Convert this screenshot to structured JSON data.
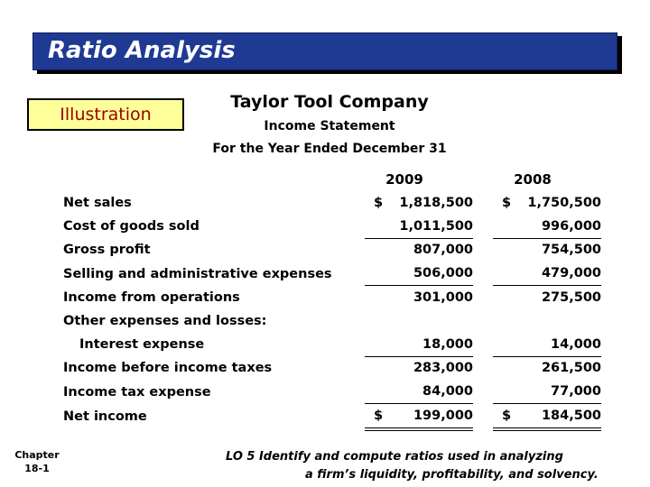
{
  "slide_title": "Ratio Analysis",
  "illustration_label": "Illustration",
  "company": "Taylor Tool Company",
  "statement": "Income Statement",
  "period": "For the Year Ended December 31",
  "years": [
    "2009",
    "2008"
  ],
  "rows": [
    {
      "label": "Net sales",
      "v2009": "1,818,500",
      "v2008": "1,750,500",
      "cur2009": "$",
      "cur2008": "$"
    },
    {
      "label": "Cost of goods sold",
      "v2009": "1,011,500",
      "v2008": "996,000"
    },
    {
      "label": "Gross profit",
      "v2009": "807,000",
      "v2008": "754,500"
    },
    {
      "label": "Selling and administrative expenses",
      "v2009": "506,000",
      "v2008": "479,000"
    },
    {
      "label": "Income from operations",
      "v2009": "301,000",
      "v2008": "275,500"
    },
    {
      "label": "Other expenses and losses:",
      "v2009": "",
      "v2008": ""
    },
    {
      "label": "Interest expense",
      "v2009": "18,000",
      "v2008": "14,000"
    },
    {
      "label": "Income before income taxes",
      "v2009": "283,000",
      "v2008": "261,500"
    },
    {
      "label": "Income tax expense",
      "v2009": "84,000",
      "v2008": "77,000"
    },
    {
      "label": "Net income",
      "v2009": "199,000",
      "v2008": "184,500",
      "cur2009": "$",
      "cur2008": "$"
    }
  ],
  "footer": {
    "chapter_label": "Chapter",
    "chapter_num": "18-1",
    "lo_line1": "LO 5  Identify and compute ratios used in analyzing",
    "lo_line2": "a firm’s liquidity, profitability, and solvency."
  }
}
